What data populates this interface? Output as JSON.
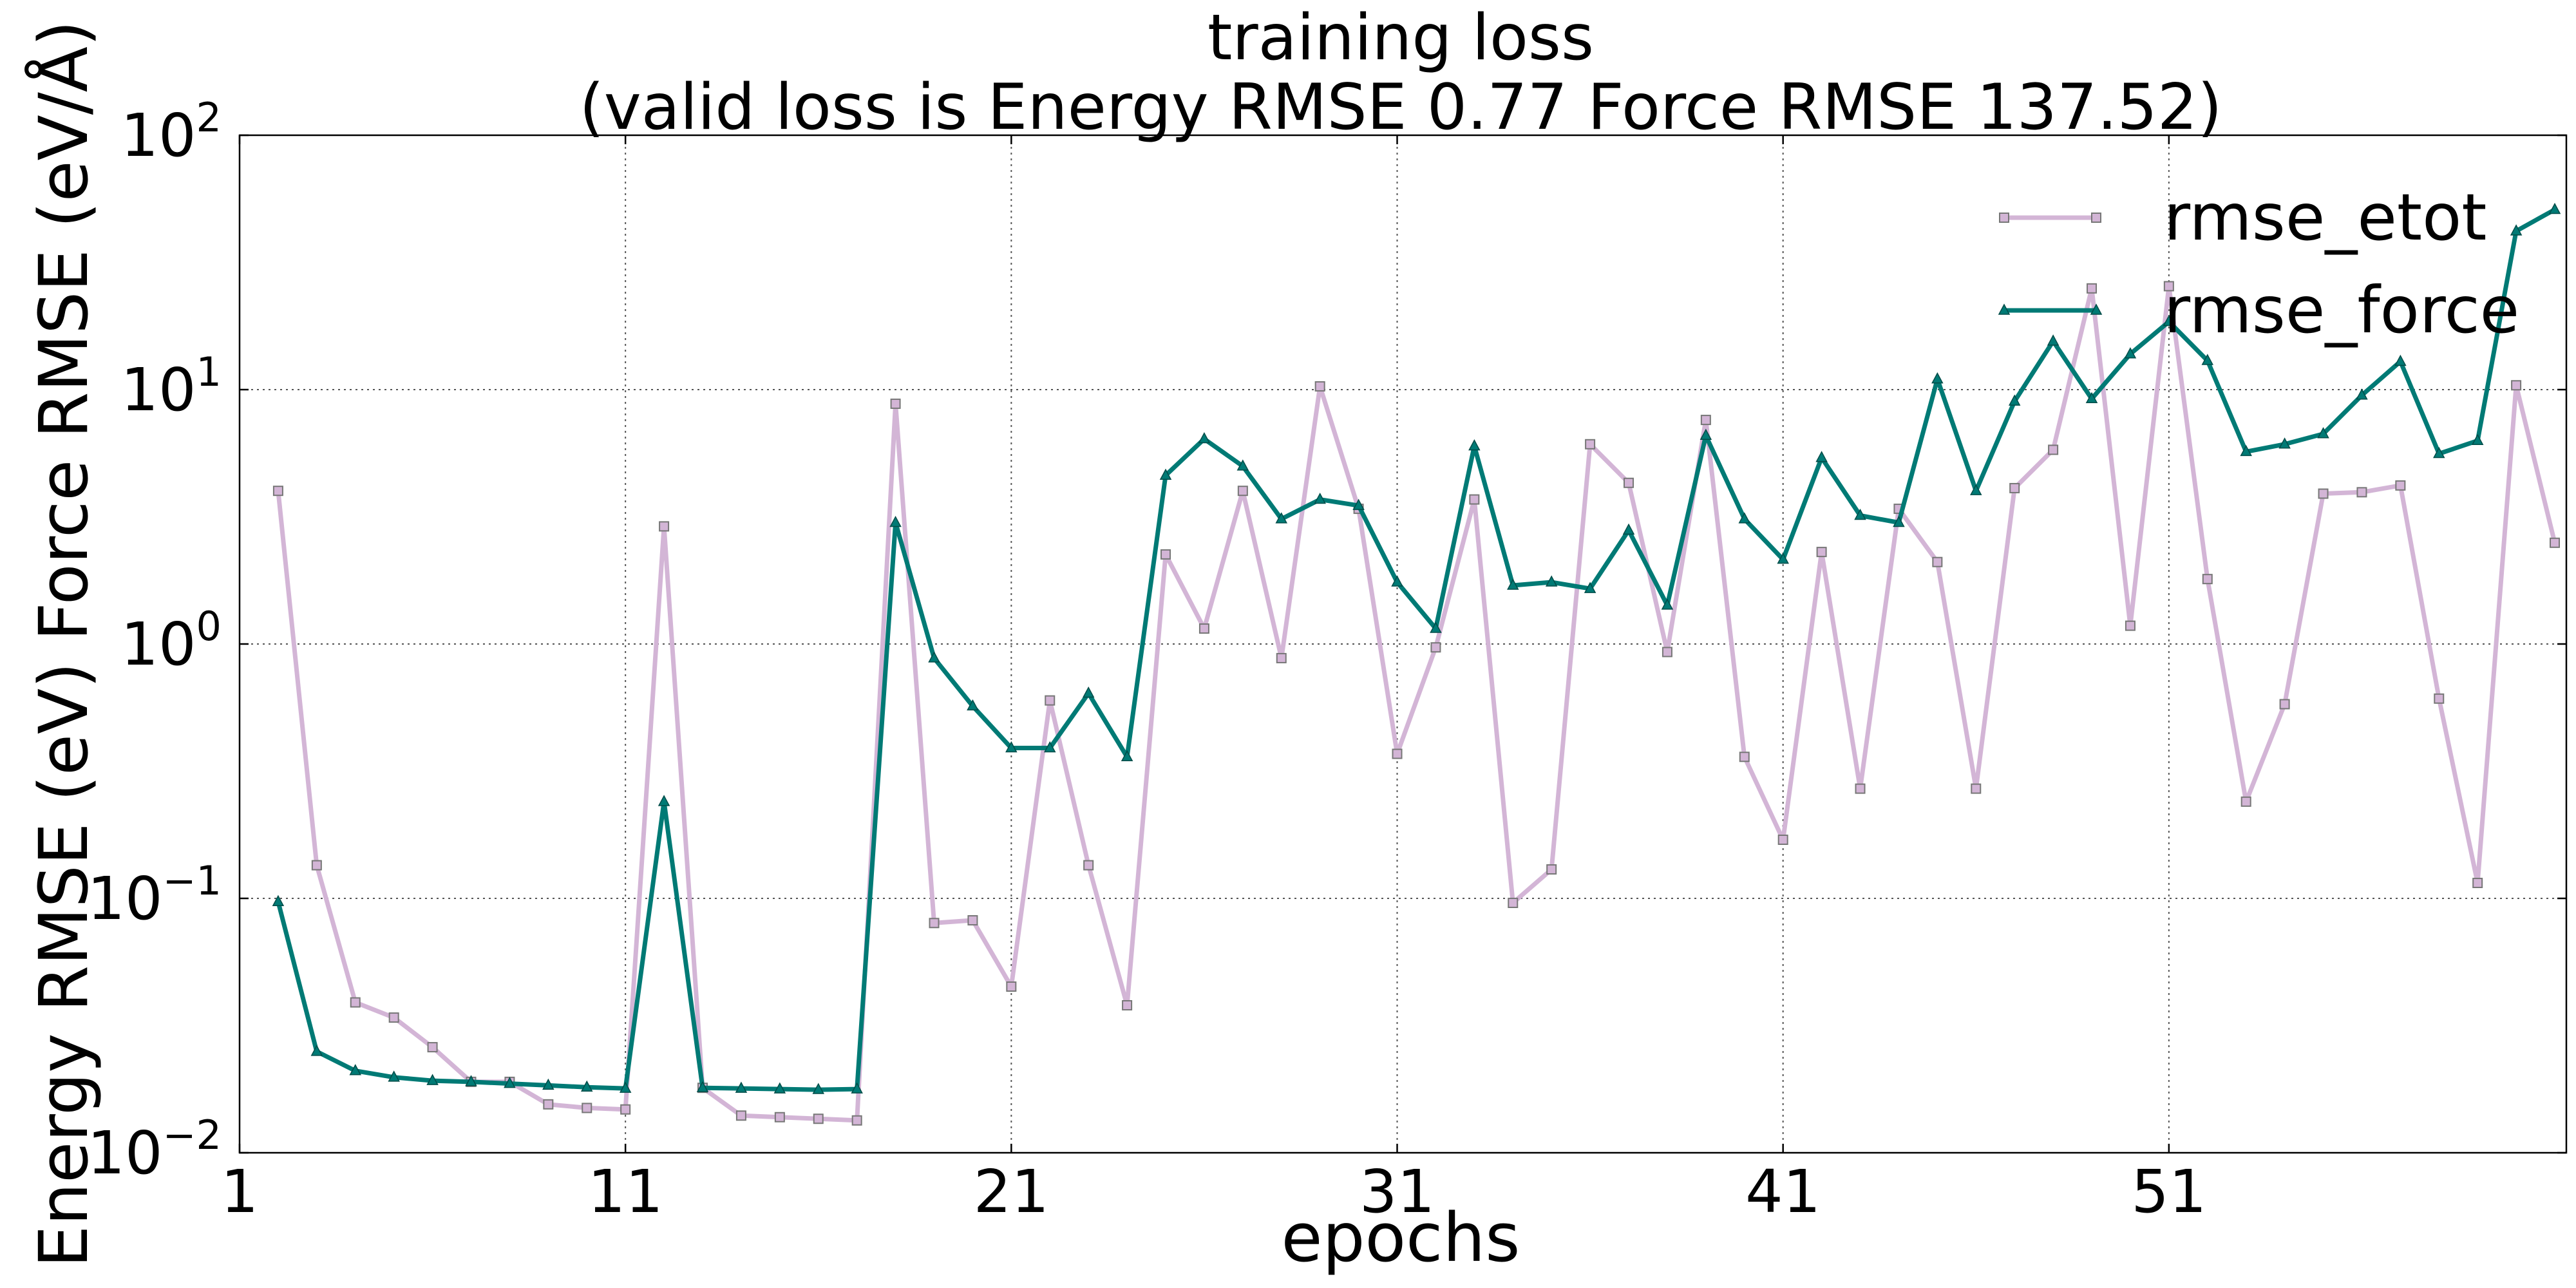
{
  "chart_data": {
    "type": "line",
    "title": "training loss",
    "subtitle": "(valid loss is Energy RMSE 0.77  Force RMSE 137.52)",
    "xlabel": "epochs",
    "ylabel": "Energy RMSE (eV)   Force RMSE (eV/Å)",
    "y_scale": "log",
    "xlim": [
      1,
      61.3
    ],
    "ylim": [
      0.01,
      100
    ],
    "grid": true,
    "legend_position": "top-right",
    "x_ticks": [
      1,
      11,
      21,
      31,
      41,
      51
    ],
    "x_tick_labels": [
      "1",
      "11",
      "21",
      "31",
      "41",
      "51"
    ],
    "y_ticks": [
      0.01,
      0.1,
      1,
      10,
      100
    ],
    "y_tick_labels": [
      {
        "base": "10",
        "exp": "−2"
      },
      {
        "base": "10",
        "exp": "−1"
      },
      {
        "base": "10",
        "exp": "0"
      },
      {
        "base": "10",
        "exp": "1"
      },
      {
        "base": "10",
        "exp": "2"
      }
    ],
    "x": [
      2,
      3,
      4,
      5,
      6,
      7,
      8,
      9,
      10,
      11,
      12,
      13,
      14,
      15,
      16,
      17,
      18,
      19,
      20,
      21,
      22,
      23,
      24,
      25,
      26,
      27,
      28,
      29,
      30,
      31,
      32,
      33,
      34,
      35,
      36,
      37,
      38,
      39,
      40,
      41,
      42,
      43,
      44,
      45,
      46,
      47,
      48,
      49,
      50,
      51,
      52,
      53,
      54,
      55,
      56,
      57,
      58,
      59,
      60,
      61
    ],
    "series": [
      {
        "name": "rmse_etot",
        "color": "#d3b5d6",
        "marker": "square",
        "values": [
          4.0,
          0.135,
          0.039,
          0.034,
          0.026,
          0.019,
          0.019,
          0.0155,
          0.015,
          0.0148,
          2.9,
          0.018,
          0.014,
          0.0138,
          0.0136,
          0.0134,
          8.8,
          0.08,
          0.082,
          0.045,
          0.6,
          0.135,
          0.038,
          2.25,
          1.15,
          4.0,
          0.88,
          10.3,
          3.4,
          0.37,
          0.97,
          3.7,
          0.096,
          0.13,
          6.1,
          4.3,
          0.93,
          7.6,
          0.36,
          0.17,
          2.3,
          0.27,
          3.4,
          2.1,
          0.27,
          4.1,
          5.8,
          25.0,
          1.18,
          25.5,
          1.8,
          0.24,
          0.58,
          3.9,
          3.95,
          4.2,
          0.61,
          0.115,
          10.4,
          2.5
        ]
      },
      {
        "name": "rmse_force",
        "color": "#007a75",
        "marker": "triangle",
        "values": [
          0.097,
          0.025,
          0.021,
          0.0198,
          0.0192,
          0.019,
          0.0187,
          0.0184,
          0.0181,
          0.0179,
          0.24,
          0.018,
          0.0179,
          0.0178,
          0.0177,
          0.0178,
          3.0,
          0.88,
          0.57,
          0.39,
          0.39,
          0.64,
          0.36,
          4.6,
          6.4,
          5.0,
          3.1,
          3.7,
          3.5,
          1.75,
          1.15,
          6.0,
          1.7,
          1.75,
          1.65,
          2.8,
          1.42,
          6.6,
          3.1,
          2.15,
          5.4,
          3.2,
          3.0,
          11.0,
          4.0,
          9.0,
          15.5,
          9.2,
          13.8,
          18.5,
          13.0,
          5.7,
          6.1,
          6.7,
          9.5,
          12.9,
          5.6,
          6.3,
          42.0,
          51.0
        ]
      }
    ]
  }
}
